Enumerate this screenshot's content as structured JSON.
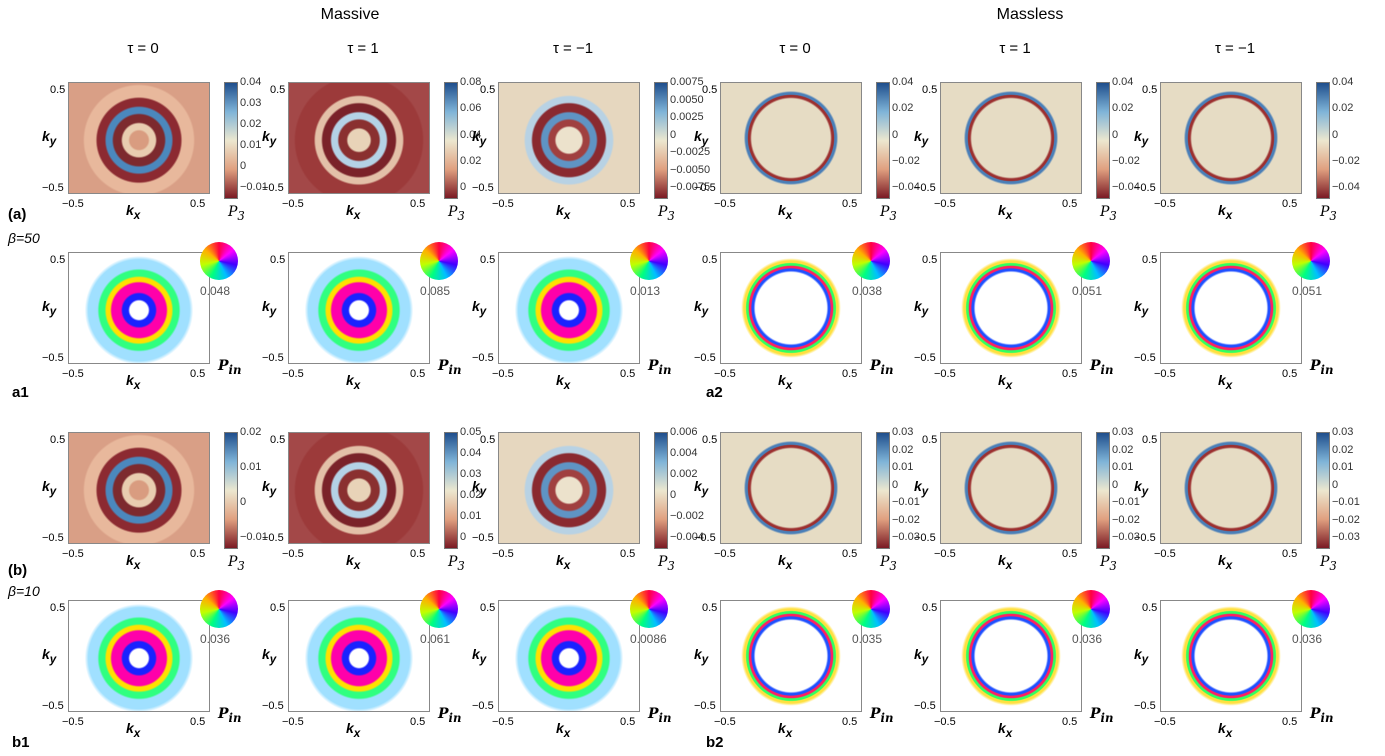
{
  "headers": {
    "massive": "Massive",
    "massless": "Massless"
  },
  "tau_labels": [
    "τ = 0",
    "τ = 1",
    "τ = −1",
    "τ = 0",
    "τ = 1",
    "τ = −1"
  ],
  "ticks": {
    "pos": "0.5",
    "neg": "−0.5",
    "ky": "k",
    "kx": "k",
    "ky_sub": "y",
    "kx_sub": "x"
  },
  "labels": {
    "a": "(a)",
    "b": "(b)",
    "a1": "a1",
    "a2": "a2",
    "b1": "b1",
    "b2": "b2",
    "beta_a": "β=50",
    "beta_b": "β=10",
    "p3": "P",
    "p3_sub": "3",
    "pin": "P",
    "pin_sub": "in"
  },
  "rows": {
    "a_cb": [
      [
        "0.04",
        "0.03",
        "0.02",
        "0.01",
        "0",
        "−0.01"
      ],
      [
        "0.08",
        "0.06",
        "0.04",
        "0.02",
        "0"
      ],
      [
        "0.0075",
        "0.0050",
        "0.0025",
        "0",
        "−0.0025",
        "−0.0050",
        "−0.0075"
      ],
      [
        "0.04",
        "0.02",
        "0",
        "−0.02",
        "−0.04"
      ],
      [
        "0.04",
        "0.02",
        "0",
        "−0.02",
        "−0.04"
      ],
      [
        "0.04",
        "0.02",
        "0",
        "−0.02",
        "−0.04"
      ]
    ],
    "a_wheel": [
      "0.048",
      "0.085",
      "0.013",
      "0.038",
      "0.051",
      "0.051"
    ],
    "b_cb": [
      [
        "0.02",
        "0.01",
        "0",
        "−0.01"
      ],
      [
        "0.05",
        "0.04",
        "0.03",
        "0.02",
        "0.01",
        "0"
      ],
      [
        "0.006",
        "0.004",
        "0.002",
        "0",
        "−0.002",
        "−0.004"
      ],
      [
        "0.03",
        "0.02",
        "0.01",
        "0",
        "−0.01",
        "−0.02",
        "−0.03"
      ],
      [
        "0.03",
        "0.02",
        "0.01",
        "0",
        "−0.01",
        "−0.02",
        "−0.03"
      ],
      [
        "0.03",
        "0.02",
        "0.01",
        "0",
        "−0.01",
        "−0.02",
        "−0.03"
      ]
    ],
    "b_wheel": [
      "0.036",
      "0.061",
      "0.0086",
      "0.035",
      "0.036",
      "0.036"
    ]
  }
}
